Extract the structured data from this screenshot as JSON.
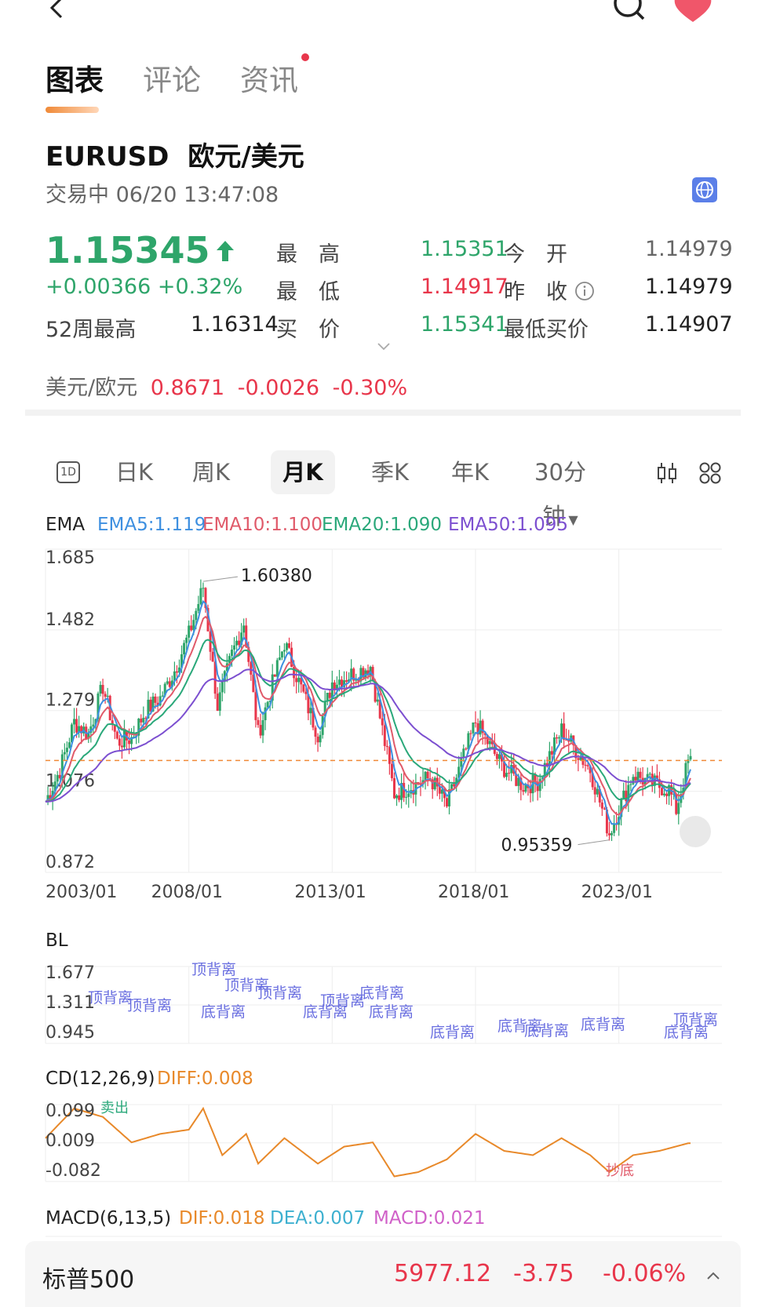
{
  "tabs": [
    {
      "label": "图表",
      "active": true
    },
    {
      "label": "评论",
      "active": false
    },
    {
      "label": "资讯",
      "active": false,
      "dot": true
    }
  ],
  "header": {
    "symbol": "EURUSD",
    "name": "欧元/美元",
    "status": "交易中 06/20 13:47:08"
  },
  "quote": {
    "price": "1.15345",
    "change": "+0.00366 +0.32%",
    "w52_label": "52周最高",
    "w52_value": "1.16314",
    "high_label": "最　高",
    "high_value": "1.15351",
    "low_label": "最　低",
    "low_value": "1.14917",
    "bid_label": "买　价",
    "bid_value": "1.15341",
    "open_label": "今　开",
    "open_value": "1.14979",
    "close_label": "昨　收",
    "close_value": "1.14979",
    "minbid_label": "最低买价",
    "minbid_value": "1.14907"
  },
  "usdeur": {
    "label": "美元/欧元",
    "value": "0.8671",
    "change": "-0.0026",
    "pct": "-0.30%"
  },
  "periods": [
    {
      "label": "1D",
      "kind": "icon"
    },
    {
      "label": "日K"
    },
    {
      "label": "周K"
    },
    {
      "label": "月K",
      "active": true
    },
    {
      "label": "季K"
    },
    {
      "label": "年K"
    },
    {
      "label": "30分钟"
    }
  ],
  "ema_legend": {
    "title": "EMA",
    "ema5": "EMA5:1.119",
    "ema10": "EMA10:1.100",
    "ema20": "EMA20:1.090",
    "ema50": "EMA50:1.095",
    "colors": {
      "ema5": "#3d8fe0",
      "ema10": "#e05a6a",
      "ema20": "#2aa87a",
      "ema50": "#7c4fd0"
    }
  },
  "chart_data": [
    {
      "type": "candlestick",
      "title": "EMA",
      "ylim": [
        0.872,
        1.685
      ],
      "y_ticks": [
        "1.685",
        "1.482",
        "1.279",
        "1.076",
        "0.872"
      ],
      "x_ticks": [
        "2003/01",
        "2008/01",
        "2013/01",
        "2018/01",
        "2023/01"
      ],
      "annotations": [
        {
          "label": "1.60380",
          "value": 1.6038,
          "date": "2008/07"
        },
        {
          "label": "0.95359",
          "value": 0.95359,
          "date": "2022/09"
        }
      ],
      "reference_line": 1.15345,
      "series": [
        {
          "name": "EMA5",
          "last": "1.119"
        },
        {
          "name": "EMA10",
          "last": "1.100"
        },
        {
          "name": "EMA20",
          "last": "1.090"
        },
        {
          "name": "EMA50",
          "last": "1.095"
        }
      ],
      "close": {
        "x": [
          "2003/01",
          "2003/07",
          "2004/01",
          "2004/07",
          "2005/01",
          "2005/07",
          "2006/01",
          "2006/07",
          "2007/01",
          "2007/07",
          "2008/01",
          "2008/07",
          "2009/01",
          "2009/07",
          "2009/12",
          "2010/06",
          "2011/05",
          "2012/07",
          "2013/01",
          "2014/05",
          "2015/03",
          "2016/06",
          "2017/01",
          "2018/01",
          "2018/12",
          "2019/09",
          "2020/03",
          "2021/01",
          "2022/01",
          "2022/09",
          "2023/07",
          "2024/01",
          "2024/10",
          "2025/01",
          "2025/06"
        ],
        "y": [
          1.05,
          1.13,
          1.25,
          1.22,
          1.34,
          1.2,
          1.21,
          1.28,
          1.31,
          1.38,
          1.47,
          1.59,
          1.29,
          1.42,
          1.5,
          1.22,
          1.45,
          1.22,
          1.35,
          1.39,
          1.07,
          1.11,
          1.04,
          1.25,
          1.14,
          1.09,
          1.1,
          1.23,
          1.13,
          0.97,
          1.12,
          1.1,
          1.08,
          1.03,
          1.15
        ]
      }
    },
    {
      "type": "line",
      "title": "BL",
      "ylim": [
        0.945,
        1.677
      ],
      "y_ticks": [
        "1.677",
        "1.311",
        "0.945"
      ],
      "labels": [
        "顶背离",
        "顶背离",
        "顶背离",
        "顶背离",
        "顶背离",
        "顶背离",
        "底背离",
        "底背离",
        "底背离",
        "底背离",
        "底背离",
        "底背离",
        "底背离",
        "底背离",
        "底背离",
        "顶背离"
      ]
    },
    {
      "type": "line",
      "title": "CD(12,26,9)",
      "legend": "DIFF:0.008",
      "ylim": [
        -0.082,
        0.099
      ],
      "y_ticks": [
        "0.099",
        "0.009",
        "-0.082"
      ],
      "marks": [
        {
          "label": "卖出"
        },
        {
          "label": "抄底"
        }
      ],
      "series": [
        {
          "name": "DIFF",
          "color": "#e8892a",
          "x": [
            "2003/01",
            "2004/01",
            "2005/01",
            "2006/01",
            "2007/01",
            "2008/01",
            "2008/07",
            "2009/03",
            "2010/01",
            "2010/06",
            "2011/05",
            "2012/07",
            "2013/06",
            "2014/06",
            "2015/03",
            "2016/01",
            "2017/01",
            "2018/01",
            "2019/01",
            "2020/01",
            "2021/01",
            "2022/01",
            "2022/09",
            "2023/07",
            "2024/06",
            "2025/06"
          ],
          "y": [
            0.02,
            0.09,
            0.07,
            0.01,
            0.03,
            0.04,
            0.09,
            -0.02,
            0.03,
            -0.04,
            0.02,
            -0.04,
            0.0,
            0.01,
            -0.07,
            -0.06,
            -0.03,
            0.03,
            -0.01,
            -0.02,
            0.02,
            -0.02,
            -0.06,
            -0.02,
            -0.01,
            0.008
          ]
        }
      ]
    }
  ],
  "bl_title": "BL",
  "bl_ticks": [
    "1.677",
    "1.311",
    "0.945"
  ],
  "cd_title": "CD(12,26,9)",
  "cd_diff": "DIFF:0.008",
  "cd_ticks": [
    "0.099",
    "0.009",
    "-0.082"
  ],
  "cd_sell": "卖出",
  "cd_bottom": "抄底",
  "macd": {
    "title": "MACD(6,13,5)",
    "dif": "DIF:0.018",
    "dea": "DEA:0.007",
    "macd": "MACD:0.021"
  },
  "bottom_ticker": {
    "name": "标普500",
    "value": "5977.12",
    "change": "-3.75",
    "pct": "-0.06%"
  }
}
